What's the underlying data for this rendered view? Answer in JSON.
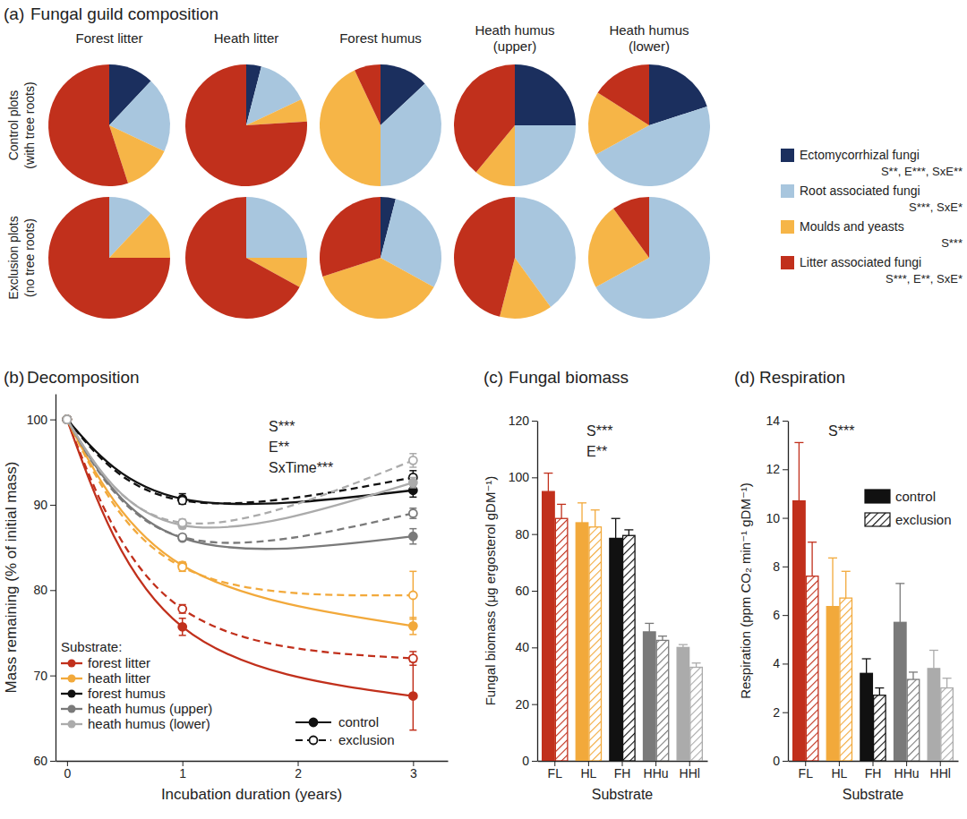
{
  "chart_data": [
    {
      "type": "pie",
      "panel_label": "(a)",
      "title": "Fungal guild composition",
      "categories": [
        "Ectomycorrhizal fungi",
        "Root associated fungi",
        "Moulds and yeasts",
        "Litter associated fungi"
      ],
      "category_stats": [
        "S**, E***, SxE**",
        "S***, SxE*",
        "S***",
        "S***, E**, SxE*"
      ],
      "colors": [
        "#1b2f5e",
        "#a8c6de",
        "#f6b547",
        "#c1301c"
      ],
      "legend": "right",
      "columns": [
        [
          "Forest litter"
        ],
        [
          "Heath litter"
        ],
        [
          "Forest humus"
        ],
        [
          "Heath humus",
          "(upper)"
        ],
        [
          "Heath humus",
          "(lower)"
        ]
      ],
      "rows": [
        {
          "label": [
            "Control plots",
            "(with tree roots)"
          ],
          "values": [
            [
              12,
              20,
              13,
              55
            ],
            [
              4,
              14,
              6,
              76
            ],
            [
              13,
              37,
              43,
              7
            ],
            [
              25,
              25,
              11,
              39
            ],
            [
              20,
              47,
              17,
              16
            ]
          ]
        },
        {
          "label": [
            "Exclusion plots",
            "(no tree roots)"
          ],
          "values": [
            [
              0,
              12,
              13,
              75
            ],
            [
              0,
              25,
              8,
              67
            ],
            [
              4,
              29,
              37,
              30
            ],
            [
              0,
              40,
              14,
              46
            ],
            [
              0,
              67,
              23,
              10
            ]
          ]
        }
      ]
    },
    {
      "type": "line",
      "panel_label": "(b)",
      "title": "Decomposition",
      "x_label": "Incubation duration (years)",
      "y_label": "Mass remaining (% of initial mass)",
      "x": [
        0,
        1,
        3
      ],
      "xlim": [
        -0.1,
        3.3
      ],
      "xticks": [
        0,
        1,
        2,
        3
      ],
      "ylim": [
        60,
        103
      ],
      "yticks": [
        60,
        70,
        80,
        90,
        100
      ],
      "annotations": [
        "S***",
        "E**",
        "SxTime***"
      ],
      "legend": "bottom-left",
      "legend_title": "Substrate:",
      "treatments": [
        {
          "name": "control",
          "line_style": "solid",
          "marker": "filled"
        },
        {
          "name": "exclusion",
          "line_style": "dashed",
          "marker": "open"
        }
      ],
      "series": [
        {
          "name": "forest litter",
          "color": "#c1301c",
          "values": [
            [
              100,
              75.7,
              67.6
            ],
            [
              100,
              77.8,
              72.0
            ]
          ],
          "errors": [
            [
              null,
              1.0,
              4.0
            ],
            [
              null,
              0.5,
              0.8
            ]
          ]
        },
        {
          "name": "heath litter",
          "color": "#f2a93b",
          "values": [
            [
              100,
              82.9,
              75.8
            ],
            [
              100,
              82.7,
              79.4
            ]
          ],
          "errors": [
            [
              null,
              0.4,
              1.0
            ],
            [
              null,
              0.5,
              2.8
            ]
          ]
        },
        {
          "name": "forest humus",
          "color": "#111111",
          "values": [
            [
              100,
              90.7,
              91.7
            ],
            [
              100,
              90.5,
              93.2
            ]
          ],
          "errors": [
            [
              null,
              0.6,
              0.8
            ],
            [
              null,
              0.4,
              0.8
            ]
          ]
        },
        {
          "name": "heath humus (upper)",
          "color": "#7a7a7a",
          "values": [
            [
              100,
              86.1,
              86.3
            ],
            [
              100,
              86.2,
              89.0
            ]
          ],
          "errors": [
            [
              null,
              0.3,
              0.9
            ],
            [
              null,
              0.3,
              0.6
            ]
          ]
        },
        {
          "name": "heath humus (lower)",
          "color": "#ababab",
          "values": [
            [
              100,
              87.6,
              92.6
            ],
            [
              100,
              87.9,
              95.2
            ]
          ],
          "errors": [
            [
              null,
              0.4,
              0.6
            ],
            [
              null,
              0.4,
              0.8
            ]
          ]
        }
      ]
    },
    {
      "type": "bar",
      "panel_label": "(c)",
      "title": "Fungal biomass",
      "x_label": "Substrate",
      "y_label": "Fungal biomass (μg ergosterol gDM⁻¹)",
      "categories": [
        "FL",
        "HL",
        "FH",
        "HHu",
        "HHl"
      ],
      "colors": [
        "#c1301c",
        "#f2a93b",
        "#111111",
        "#7a7a7a",
        "#ababab"
      ],
      "ylim": [
        0,
        120
      ],
      "yticks": [
        0,
        20,
        40,
        60,
        80,
        100,
        120
      ],
      "annotations": [
        "S***",
        "E**"
      ],
      "series": [
        {
          "values": [
            95,
            84,
            78.5,
            45.5,
            40
          ],
          "errors": [
            6.5,
            7,
            7,
            3,
            1
          ]
        },
        {
          "values": [
            85.5,
            82.5,
            79.5,
            42.5,
            33
          ],
          "errors": [
            5,
            6,
            2,
            1.5,
            1.5
          ]
        }
      ]
    },
    {
      "type": "bar",
      "panel_label": "(d)",
      "title": "Respiration",
      "x_label": "Substrate",
      "y_label": "Respiration (ppm CO₂ min⁻¹ gDM⁻¹)",
      "categories": [
        "FL",
        "HL",
        "FH",
        "HHu",
        "HHl"
      ],
      "colors": [
        "#c1301c",
        "#f2a93b",
        "#111111",
        "#7a7a7a",
        "#ababab"
      ],
      "ylim": [
        0,
        14
      ],
      "yticks": [
        0,
        2,
        4,
        6,
        8,
        10,
        12,
        14
      ],
      "annotations": [
        "S***"
      ],
      "legend": "top-right",
      "series": [
        {
          "name": "control",
          "values": [
            10.7,
            6.35,
            3.6,
            5.7,
            3.8
          ],
          "errors": [
            2.4,
            2.0,
            0.6,
            1.6,
            0.75
          ]
        },
        {
          "name": "exclusion",
          "values": [
            7.6,
            6.7,
            2.7,
            3.35,
            3.0
          ],
          "errors": [
            1.4,
            1.1,
            0.3,
            0.3,
            0.4
          ]
        }
      ]
    }
  ]
}
